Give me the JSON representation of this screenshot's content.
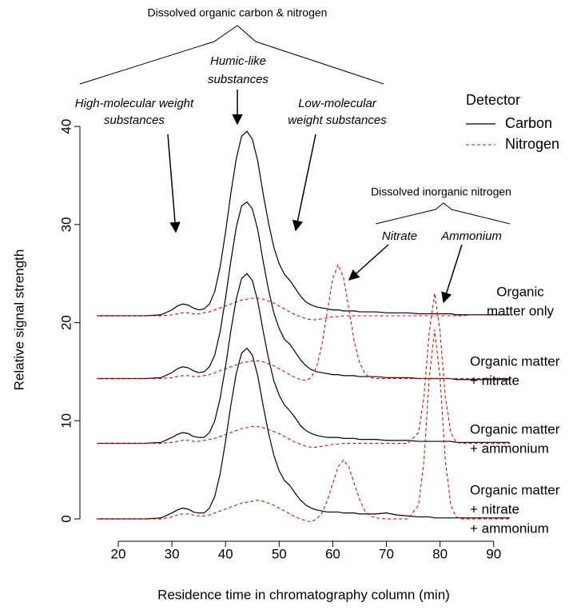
{
  "chart_data": {
    "type": "line",
    "title": "Dissolved organic carbon & nitrogen",
    "xlabel": "Residence time in chromatography column (min)",
    "ylabel": "Relative signal strength",
    "xlim": [
      12.85,
      96.3
    ],
    "ylim": [
      -2.28,
      42.7
    ],
    "xticks": [
      20,
      30,
      40,
      50,
      60,
      70,
      80,
      90
    ],
    "yticks": [
      0,
      10,
      20,
      30,
      40
    ],
    "legend_title": "Detector",
    "legend_position": "top-right",
    "detectors": [
      {
        "name": "Carbon",
        "color": "#000000",
        "dashed": false
      },
      {
        "name": "Nitrogen",
        "color": "#ff0000",
        "dashed": true
      }
    ],
    "annotations": {
      "humic": [
        "Humic-like",
        "substances"
      ],
      "high_mw": [
        "High-molecular weight",
        "substances"
      ],
      "low_mw": [
        "Low-molecular",
        "weight substances"
      ],
      "inorganic": "Dissolved inorganic nitrogen",
      "nitrate": "Nitrate",
      "ammonium": "Ammonium"
    },
    "x": [
      16,
      20,
      25,
      28,
      30,
      31,
      32,
      33,
      34,
      35,
      36,
      37,
      38,
      39,
      40,
      41,
      42,
      43,
      44,
      45,
      46,
      47,
      48,
      49,
      50,
      51,
      52,
      53,
      54,
      55,
      56,
      57,
      58,
      59,
      60,
      61,
      62,
      63,
      64,
      65,
      66,
      67,
      68,
      70,
      72,
      74,
      76,
      77,
      78,
      79,
      80,
      81,
      82,
      83,
      84,
      86,
      88,
      90,
      93
    ],
    "samples": [
      {
        "label": [
          "Organic",
          "matter only"
        ],
        "carbon": [
          20.7,
          20.7,
          20.7,
          20.8,
          21.3,
          21.7,
          21.9,
          21.8,
          21.5,
          21.3,
          21.4,
          21.9,
          23.2,
          25.7,
          29.2,
          33.2,
          36.7,
          39.0,
          39.5,
          38.7,
          36.5,
          33.2,
          30.2,
          27.7,
          26.0,
          24.9,
          24.3,
          23.5,
          22.7,
          22.1,
          21.8,
          21.6,
          21.5,
          21.4,
          21.3,
          21.3,
          21.2,
          21.2,
          21.2,
          21.1,
          21.1,
          21.1,
          21.1,
          21.0,
          21.0,
          21.0,
          20.9,
          20.9,
          20.9,
          20.9,
          20.9,
          20.9,
          20.9,
          20.8,
          20.8,
          20.8,
          20.8,
          20.8,
          20.8
        ],
        "nitrogen": [
          20.7,
          20.7,
          20.7,
          20.7,
          20.8,
          20.9,
          21.0,
          21.0,
          20.9,
          20.9,
          21.0,
          21.1,
          21.3,
          21.5,
          21.7,
          21.9,
          22.1,
          22.3,
          22.4,
          22.5,
          22.5,
          22.4,
          22.2,
          22.0,
          21.7,
          21.4,
          21.1,
          20.8,
          20.6,
          20.4,
          20.3,
          20.3,
          20.4,
          20.5,
          20.6,
          20.6,
          20.7,
          20.7,
          20.7,
          20.7,
          20.7,
          20.7,
          20.7,
          20.7,
          20.7,
          20.7,
          20.7,
          20.7,
          20.7,
          20.7,
          20.7,
          20.7,
          20.7,
          20.7,
          20.7,
          20.8,
          20.8,
          20.8,
          20.8
        ]
      },
      {
        "label": [
          "Organic matter",
          "+ nitrate"
        ],
        "carbon": [
          14.3,
          14.3,
          14.3,
          14.4,
          14.9,
          15.3,
          15.5,
          15.4,
          15.1,
          14.9,
          15.0,
          15.5,
          16.7,
          19.1,
          22.5,
          26.3,
          29.7,
          31.9,
          32.3,
          31.6,
          29.5,
          26.3,
          23.4,
          21.0,
          19.4,
          18.3,
          17.8,
          17.0,
          16.2,
          15.6,
          15.2,
          15.0,
          14.9,
          14.8,
          14.7,
          14.7,
          14.6,
          14.6,
          14.6,
          14.5,
          14.5,
          14.5,
          14.5,
          14.4,
          14.4,
          14.4,
          14.3,
          14.3,
          14.3,
          14.3,
          14.3,
          14.3,
          14.3,
          14.2,
          14.2,
          14.2,
          14.2,
          14.2,
          14.2
        ],
        "nitrogen": [
          14.3,
          14.3,
          14.3,
          14.3,
          14.4,
          14.5,
          14.6,
          14.6,
          14.5,
          14.5,
          14.6,
          14.7,
          14.9,
          15.1,
          15.3,
          15.5,
          15.7,
          15.9,
          16.0,
          16.1,
          16.1,
          16.0,
          15.8,
          15.6,
          15.3,
          15.0,
          14.7,
          14.4,
          14.2,
          14.1,
          14.4,
          15.5,
          17.8,
          21.2,
          24.5,
          25.9,
          24.6,
          21.4,
          18.1,
          15.9,
          14.8,
          14.4,
          14.3,
          14.3,
          14.3,
          14.3,
          14.3,
          14.3,
          14.3,
          14.3,
          14.3,
          14.3,
          14.3,
          14.3,
          14.3,
          14.3,
          14.3,
          14.3,
          14.3
        ]
      },
      {
        "label": [
          "Organic matter",
          "+ ammonium"
        ],
        "carbon": [
          7.7,
          7.7,
          7.7,
          7.8,
          8.3,
          8.6,
          8.8,
          8.7,
          8.4,
          8.3,
          8.3,
          8.8,
          10.0,
          12.3,
          15.5,
          19.2,
          22.4,
          24.5,
          25.0,
          24.3,
          22.2,
          19.2,
          16.4,
          14.1,
          12.6,
          11.6,
          11.0,
          10.3,
          9.5,
          9.0,
          8.7,
          8.5,
          8.4,
          8.3,
          8.3,
          8.3,
          8.2,
          8.2,
          8.2,
          8.1,
          8.1,
          8.1,
          8.1,
          8.0,
          8.0,
          8.0,
          7.9,
          7.9,
          7.9,
          7.9,
          7.9,
          7.9,
          7.9,
          7.8,
          7.8,
          7.8,
          7.8,
          7.8,
          7.8
        ],
        "nitrogen": [
          7.7,
          7.7,
          7.7,
          7.7,
          7.8,
          7.9,
          8.0,
          8.0,
          7.9,
          7.9,
          8.0,
          8.1,
          8.2,
          8.4,
          8.6,
          8.8,
          9.0,
          9.2,
          9.3,
          9.4,
          9.4,
          9.3,
          9.1,
          8.9,
          8.7,
          8.4,
          8.1,
          7.8,
          7.6,
          7.4,
          7.3,
          7.3,
          7.4,
          7.5,
          7.6,
          7.6,
          7.7,
          7.7,
          7.7,
          7.7,
          7.7,
          7.7,
          7.7,
          7.7,
          7.7,
          7.7,
          8.8,
          12.4,
          19.1,
          23.0,
          19.1,
          12.4,
          8.8,
          7.8,
          7.7,
          7.7,
          7.7,
          7.7,
          7.7
        ]
      },
      {
        "label": [
          "Organic matter",
          "+ nitrate",
          "+ ammonium"
        ],
        "carbon": [
          0,
          0,
          0,
          0.1,
          0.6,
          0.9,
          1.1,
          1.0,
          0.7,
          0.6,
          0.6,
          1.1,
          2.3,
          4.6,
          7.9,
          11.6,
          14.8,
          16.9,
          17.4,
          16.7,
          14.6,
          11.6,
          8.8,
          6.5,
          4.9,
          3.9,
          3.4,
          2.6,
          1.9,
          1.4,
          1.1,
          0.9,
          0.8,
          0.7,
          0.7,
          0.7,
          0.6,
          0.6,
          0.6,
          0.5,
          0.5,
          0.5,
          0.5,
          0.6,
          0.4,
          0.3,
          0.2,
          0.2,
          0.2,
          0.1,
          0.1,
          0.1,
          0.1,
          0.1,
          0.1,
          0.1,
          0.1,
          0.1,
          0.1
        ],
        "nitrogen": [
          0,
          0,
          0,
          0,
          0.2,
          0.4,
          0.5,
          0.5,
          0.4,
          0.3,
          0.3,
          0.4,
          0.6,
          0.8,
          1.0,
          1.2,
          1.4,
          1.6,
          1.7,
          1.8,
          1.9,
          1.8,
          1.6,
          1.4,
          1.1,
          0.8,
          0.5,
          0.2,
          0,
          -0.2,
          -0.3,
          0.0,
          0.6,
          1.9,
          3.6,
          5.3,
          6.0,
          5.3,
          3.6,
          2.0,
          0.8,
          0.3,
          0.1,
          0,
          0,
          0,
          1.4,
          5.9,
          14.4,
          19.3,
          14.4,
          5.9,
          1.4,
          0.2,
          0,
          0,
          0,
          0,
          0
        ]
      }
    ]
  }
}
